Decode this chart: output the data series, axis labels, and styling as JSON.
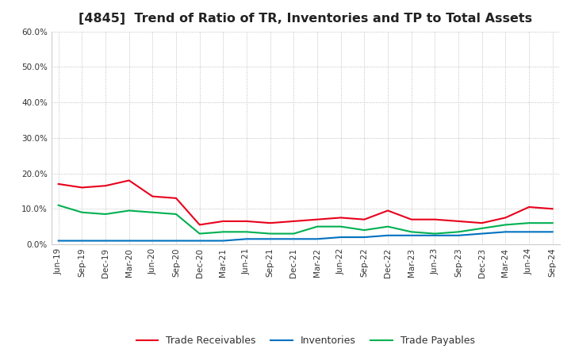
{
  "title": "[4845]  Trend of Ratio of TR, Inventories and TP to Total Assets",
  "x_labels": [
    "Jun-19",
    "Sep-19",
    "Dec-19",
    "Mar-20",
    "Jun-20",
    "Sep-20",
    "Dec-20",
    "Mar-21",
    "Jun-21",
    "Sep-21",
    "Dec-21",
    "Mar-22",
    "Jun-22",
    "Sep-22",
    "Dec-22",
    "Mar-23",
    "Jun-23",
    "Sep-23",
    "Dec-23",
    "Mar-24",
    "Jun-24",
    "Sep-24"
  ],
  "trade_receivables": [
    17.0,
    16.0,
    16.5,
    18.0,
    13.5,
    13.0,
    5.5,
    6.5,
    6.5,
    6.0,
    6.5,
    7.0,
    7.5,
    7.0,
    9.5,
    7.0,
    7.0,
    6.5,
    6.0,
    7.5,
    10.5,
    10.0
  ],
  "inventories": [
    1.0,
    1.0,
    1.0,
    1.0,
    1.0,
    1.0,
    1.0,
    1.0,
    1.5,
    1.5,
    1.5,
    1.5,
    2.0,
    2.0,
    2.5,
    2.5,
    2.5,
    2.5,
    3.0,
    3.5,
    3.5,
    3.5
  ],
  "trade_payables": [
    11.0,
    9.0,
    8.5,
    9.5,
    9.0,
    8.5,
    3.0,
    3.5,
    3.5,
    3.0,
    3.0,
    5.0,
    5.0,
    4.0,
    5.0,
    3.5,
    3.0,
    3.5,
    4.5,
    5.5,
    6.0,
    6.0
  ],
  "tr_color": "#e8001c",
  "inv_color": "#0070c0",
  "tp_color": "#00b050",
  "ylim": [
    0,
    60
  ],
  "yticks": [
    0,
    10,
    20,
    30,
    40,
    50,
    60
  ],
  "legend_labels": [
    "Trade Receivables",
    "Inventories",
    "Trade Payables"
  ],
  "bg_color": "#ffffff",
  "plot_bg_color": "#ffffff",
  "grid_color": "#b0b0b0",
  "title_fontsize": 11.5,
  "axis_fontsize": 7.5,
  "legend_fontsize": 9
}
